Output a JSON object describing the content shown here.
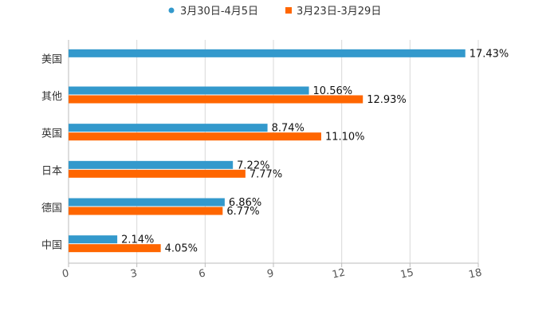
{
  "chart_data": {
    "type": "bar",
    "orientation": "horizontal",
    "title": "",
    "xlabel": "",
    "ylabel": "",
    "xlim": [
      0,
      18
    ],
    "xticks": [
      0,
      3,
      6,
      9,
      12,
      15,
      18
    ],
    "grid": true,
    "legend_position": "top-center",
    "categories": [
      "美国",
      "其他",
      "英国",
      "日本",
      "德国",
      "中国"
    ],
    "series": [
      {
        "name": "3月30日-4月5日",
        "color": "#3399CC",
        "values": [
          17.43,
          10.56,
          8.74,
          7.22,
          6.86,
          2.14
        ],
        "labels": [
          "17.43%",
          "10.56%",
          "8.74%",
          "7.22%",
          "6.86%",
          "2.14%"
        ]
      },
      {
        "name": "3月23日-3月29日",
        "color": "#FF6600",
        "values": [
          null,
          12.93,
          11.1,
          7.77,
          6.77,
          4.05
        ],
        "labels": [
          "",
          "12.93%",
          "11.10%",
          "7.77%",
          "6.77%",
          "4.05%"
        ]
      }
    ]
  }
}
